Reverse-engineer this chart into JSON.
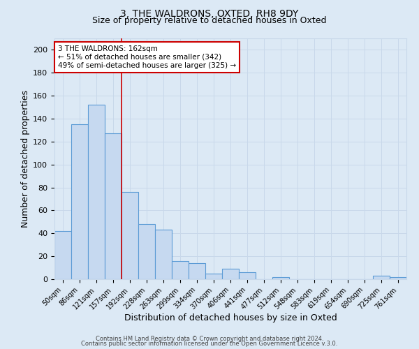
{
  "title1": "3, THE WALDRONS, OXTED, RH8 9DY",
  "title2": "Size of property relative to detached houses in Oxted",
  "xlabel": "Distribution of detached houses by size in Oxted",
  "ylabel": "Number of detached properties",
  "bar_labels": [
    "50sqm",
    "86sqm",
    "121sqm",
    "157sqm",
    "192sqm",
    "228sqm",
    "263sqm",
    "299sqm",
    "334sqm",
    "370sqm",
    "406sqm",
    "441sqm",
    "477sqm",
    "512sqm",
    "548sqm",
    "583sqm",
    "619sqm",
    "654sqm",
    "690sqm",
    "725sqm",
    "761sqm"
  ],
  "bar_values": [
    42,
    135,
    152,
    127,
    76,
    48,
    43,
    16,
    14,
    5,
    9,
    6,
    0,
    2,
    0,
    0,
    0,
    0,
    0,
    3,
    2
  ],
  "bar_color": "#c6d9f0",
  "bar_edge_color": "#5b9bd5",
  "red_line_x": 3.5,
  "annotation_text": "3 THE WALDRONS: 162sqm\n← 51% of detached houses are smaller (342)\n49% of semi-detached houses are larger (325) →",
  "annotation_box_color": "#ffffff",
  "annotation_box_edge": "#cc0000",
  "ylim": [
    0,
    210
  ],
  "yticks": [
    0,
    20,
    40,
    60,
    80,
    100,
    120,
    140,
    160,
    180,
    200
  ],
  "grid_color": "#c8d8ea",
  "footnote1": "Contains HM Land Registry data © Crown copyright and database right 2024.",
  "footnote2": "Contains public sector information licensed under the Open Government Licence v.3.0.",
  "bg_color": "#dce9f5",
  "title1_fontsize": 10,
  "title2_fontsize": 9
}
